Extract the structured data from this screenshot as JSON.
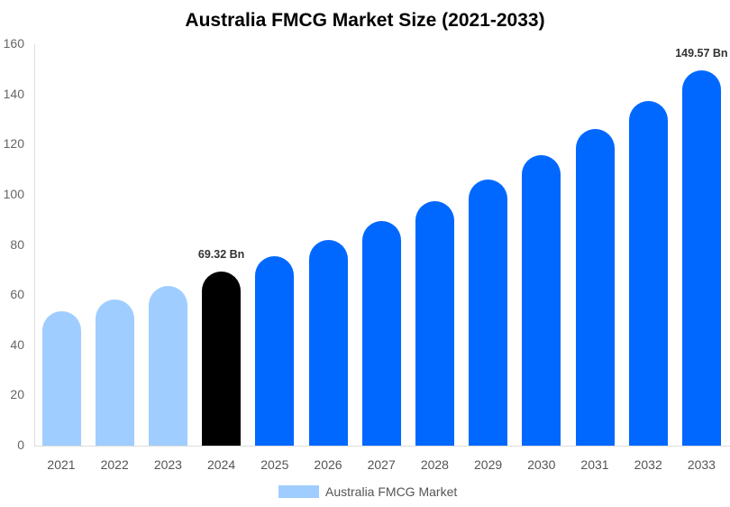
{
  "chart_data": {
    "type": "bar",
    "title": "Australia FMCG Market Size (2021-2033)",
    "xlabel": "",
    "ylabel": "",
    "ylim": [
      0,
      160
    ],
    "yticks": [
      0,
      20,
      40,
      60,
      80,
      100,
      120,
      140,
      160
    ],
    "grid": false,
    "legend_position": "bottom",
    "categories": [
      "2021",
      "2022",
      "2023",
      "2024",
      "2025",
      "2026",
      "2027",
      "2028",
      "2029",
      "2030",
      "2031",
      "2032",
      "2033"
    ],
    "series": [
      {
        "name": "Australia FMCG Market",
        "values": [
          53.6,
          58.3,
          63.5,
          69.32,
          75.5,
          82.0,
          89.6,
          97.5,
          106.1,
          115.8,
          126.3,
          137.4,
          149.57
        ]
      }
    ],
    "bar_colors": [
      "#9fcdff",
      "#9fcdff",
      "#9fcdff",
      "#000000",
      "#0068ff",
      "#0068ff",
      "#0068ff",
      "#0068ff",
      "#0068ff",
      "#0068ff",
      "#0068ff",
      "#0068ff",
      "#0068ff"
    ],
    "annotations": [
      {
        "category": "2024",
        "text": "69.32 Bn"
      },
      {
        "category": "2033",
        "text": "149.57 Bn"
      }
    ]
  },
  "legend": {
    "label": "Australia FMCG Market",
    "color": "#9fcdff"
  }
}
